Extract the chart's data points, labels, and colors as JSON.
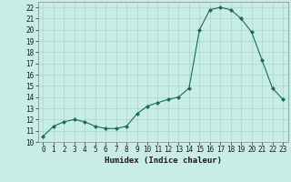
{
  "x": [
    0,
    1,
    2,
    3,
    4,
    5,
    6,
    7,
    8,
    9,
    10,
    11,
    12,
    13,
    14,
    15,
    16,
    17,
    18,
    19,
    20,
    21,
    22,
    23
  ],
  "y": [
    10.5,
    11.4,
    11.8,
    12.0,
    11.8,
    11.4,
    11.2,
    11.2,
    11.4,
    12.5,
    13.2,
    13.5,
    13.8,
    14.0,
    14.8,
    20.0,
    21.8,
    22.0,
    21.8,
    21.0,
    19.8,
    17.3,
    14.8,
    13.8
  ],
  "line_color": "#1a6b5a",
  "marker": "D",
  "marker_size": 2.0,
  "bg_color": "#c8ece6",
  "grid_color": "#a8d4cc",
  "xlabel": "Humidex (Indice chaleur)",
  "xlim": [
    -0.5,
    23.5
  ],
  "ylim": [
    10,
    22.5
  ],
  "yticks": [
    10,
    11,
    12,
    13,
    14,
    15,
    16,
    17,
    18,
    19,
    20,
    21,
    22
  ],
  "xticks": [
    0,
    1,
    2,
    3,
    4,
    5,
    6,
    7,
    8,
    9,
    10,
    11,
    12,
    13,
    14,
    15,
    16,
    17,
    18,
    19,
    20,
    21,
    22,
    23
  ],
  "font_color": "#1a1a1a",
  "label_fontsize": 6.5,
  "tick_fontsize": 5.5
}
